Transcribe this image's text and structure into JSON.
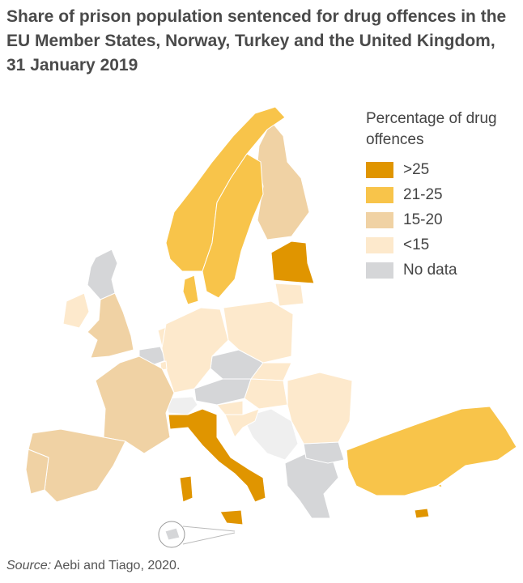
{
  "title": "Share of prison population sentenced for drug offences in the EU Member States, Norway, Turkey and the United Kingdom, 31 January 2019",
  "legend": {
    "title": "Percentage of drug offences",
    "categories": [
      {
        "key": "gt25",
        "label": ">25",
        "color": "#e09500"
      },
      {
        "key": "21_25",
        "label": "21-25",
        "color": "#f8c44a"
      },
      {
        "key": "15_20",
        "label": "15-20",
        "color": "#f0d2a4"
      },
      {
        "key": "lt15",
        "label": "<15",
        "color": "#fde9cc"
      },
      {
        "key": "nodata",
        "label": "No data",
        "color": "#d5d6d8"
      }
    ]
  },
  "source": {
    "label": "Source:",
    "text": " Aebi and Tiago, 2020."
  },
  "colors": {
    "non_member": "#efefef",
    "border": "#ffffff"
  }
}
